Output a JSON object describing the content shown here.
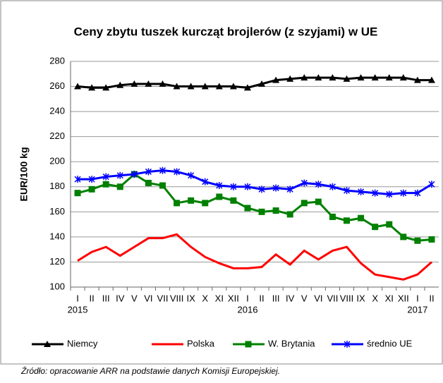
{
  "chart_data": {
    "type": "line",
    "title": "Ceny zbytu tuszek kurcząt brojlerów (z szyjami) w UE",
    "y_label": "EUR/100 kg",
    "categories": [
      "I",
      "II",
      "III",
      "IV",
      "V",
      "VI",
      "VII",
      "VIII",
      "IX",
      "X",
      "XI",
      "XII",
      "I",
      "II",
      "III",
      "IV",
      "V",
      "VI",
      "VII",
      "VIII",
      "IX",
      "X",
      "XI",
      "XII",
      "I",
      "II"
    ],
    "years": [
      "2015",
      "2016",
      "2017"
    ],
    "ylim": [
      100,
      280
    ],
    "yticks": [
      100,
      120,
      140,
      160,
      180,
      200,
      220,
      240,
      260,
      280
    ],
    "grid": true,
    "legend": "bottom",
    "series": [
      {
        "name": "Niemcy",
        "color": "#000000",
        "marker": "triangle",
        "values": [
          260,
          259,
          259,
          261,
          262,
          262,
          262,
          260,
          260,
          260,
          260,
          260,
          259,
          262,
          265,
          266,
          267,
          267,
          267,
          266,
          267,
          267,
          267,
          267,
          265,
          265
        ]
      },
      {
        "name": "Polska",
        "color": "#ff0000",
        "marker": "none",
        "values": [
          121,
          128,
          132,
          125,
          132,
          139,
          139,
          142,
          132,
          124,
          119,
          115,
          115,
          116,
          126,
          118,
          129,
          122,
          129,
          132,
          119,
          110,
          108,
          106,
          110,
          120
        ]
      },
      {
        "name": "W. Brytania",
        "color": "#008000",
        "marker": "square",
        "values": [
          175,
          178,
          182,
          180,
          190,
          183,
          181,
          167,
          169,
          167,
          172,
          169,
          163,
          160,
          161,
          158,
          167,
          168,
          156,
          153,
          155,
          148,
          150,
          140,
          137,
          138
        ]
      },
      {
        "name": "średnio UE",
        "color": "#0000ff",
        "marker": "star",
        "values": [
          186,
          186,
          188,
          189,
          190,
          192,
          193,
          192,
          189,
          184,
          181,
          180,
          180,
          178,
          179,
          178,
          183,
          182,
          180,
          177,
          176,
          175,
          174,
          175,
          175,
          182
        ]
      }
    ],
    "source": "Źródło: opracowanie ARR na podstawie danych Komisji Europejskiej."
  }
}
